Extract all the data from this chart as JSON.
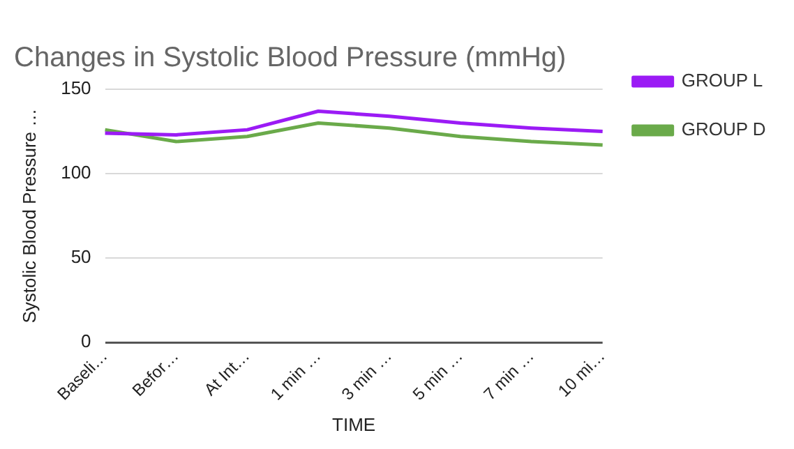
{
  "chart_data": {
    "type": "line",
    "title": "Changes in Systolic Blood Pressure (mmHg)",
    "xlabel": "TIME",
    "ylabel": "Systolic Blood Pressure …",
    "categories": [
      "Baseli…",
      "Befor…",
      "At Int…",
      "1 min …",
      "3 min …",
      "5 min …",
      "7 min …",
      "10 mi…"
    ],
    "series": [
      {
        "name": "GROUP L",
        "color": "#9b1bf5",
        "values": [
          124,
          123,
          126,
          137,
          134,
          130,
          127,
          125
        ]
      },
      {
        "name": "GROUP D",
        "color": "#6aaa4a",
        "values": [
          126,
          119,
          122,
          130,
          127,
          122,
          119,
          117
        ]
      }
    ],
    "ylim": [
      0,
      150
    ],
    "yticks": [
      0,
      50,
      100,
      150
    ],
    "grid": "y",
    "legend": "right",
    "marker": "none",
    "line_style": "solid"
  }
}
